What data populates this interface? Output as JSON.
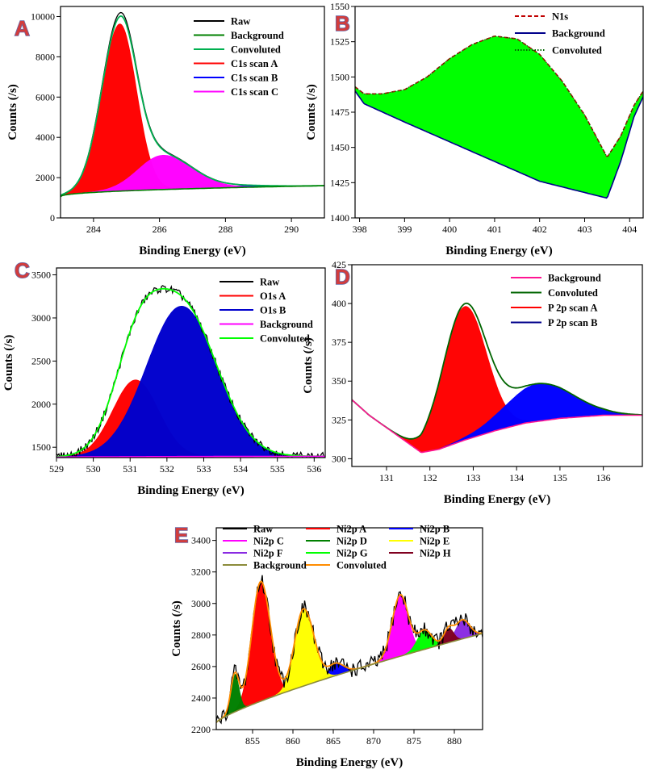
{
  "chart_data": [
    {
      "panel": "A",
      "type": "area",
      "xlabel": "Binding Energy (eV)",
      "ylabel": "Counts (/s)",
      "xlim": [
        283,
        291
      ],
      "ylim": [
        0,
        10500
      ],
      "xticks": [
        284,
        286,
        288,
        290
      ],
      "yticks": [
        0,
        2000,
        4000,
        6000,
        8000,
        10000
      ],
      "legend_position": "top-right",
      "background": {
        "x0": 283,
        "x1": 291,
        "y0": 1050,
        "y1": 1600,
        "k": 0.45
      },
      "peaks": [
        {
          "name": "C1s scan A",
          "color": "#ff0000",
          "center": 284.8,
          "height": 8300,
          "wl": 0.55,
          "wr": 0.5
        },
        {
          "name": "C1s scan B",
          "color": "#0000ff",
          "center": 288.5,
          "height": 80,
          "wl": 0.7,
          "wr": 0.9
        },
        {
          "name": "C1s scan C",
          "color": "#ff00ff",
          "center": 286.1,
          "height": 1700,
          "wl": 0.75,
          "wr": 0.9
        }
      ],
      "series": [
        {
          "name": "Raw",
          "color": "#000000",
          "style": "solid"
        },
        {
          "name": "Background",
          "color": "#008000",
          "style": "solid"
        },
        {
          "name": "Convoluted",
          "color": "#00b050",
          "style": "solid"
        },
        {
          "name": "C1s scan A",
          "color": "#ff0000",
          "style": "solid"
        },
        {
          "name": "C1s scan B",
          "color": "#0000ff",
          "style": "solid"
        },
        {
          "name": "C1s scan C",
          "color": "#ff00ff",
          "style": "solid"
        }
      ]
    },
    {
      "panel": "B",
      "type": "area",
      "xlabel": "Binding Energy (eV)",
      "ylabel": "Counts (/s)",
      "xlim": [
        397.9,
        404.3
      ],
      "ylim": [
        1400,
        1550
      ],
      "xticks": [
        398,
        399,
        400,
        401,
        402,
        403,
        404
      ],
      "yticks": [
        1400,
        1425,
        1450,
        1475,
        1500,
        1525,
        1550
      ],
      "legend_position": "top-right",
      "fill_color": "#00ff00",
      "upper_curve": [
        [
          397.9,
          1493
        ],
        [
          398.1,
          1488
        ],
        [
          398.5,
          1488
        ],
        [
          399,
          1491
        ],
        [
          399.5,
          1500
        ],
        [
          400,
          1513
        ],
        [
          400.5,
          1523
        ],
        [
          401,
          1529
        ],
        [
          401.5,
          1527
        ],
        [
          402,
          1516
        ],
        [
          402.5,
          1497
        ],
        [
          403,
          1473
        ],
        [
          403.5,
          1443
        ],
        [
          403.8,
          1458
        ],
        [
          404.1,
          1480
        ],
        [
          404.3,
          1490
        ]
      ],
      "lower_curve": [
        [
          397.9,
          1490
        ],
        [
          398.1,
          1481
        ],
        [
          399,
          1468
        ],
        [
          400,
          1454
        ],
        [
          401,
          1440
        ],
        [
          402,
          1426
        ],
        [
          403,
          1418
        ],
        [
          403.5,
          1414
        ],
        [
          403.8,
          1440
        ],
        [
          404.1,
          1472
        ],
        [
          404.3,
          1486
        ]
      ],
      "series": [
        {
          "name": "N1s",
          "color": "#c00000",
          "style": "dashed"
        },
        {
          "name": "Background",
          "color": "#00008b",
          "style": "solid"
        },
        {
          "name": "Convoluted",
          "color": "#006400",
          "style": "dotted"
        }
      ]
    },
    {
      "panel": "C",
      "type": "area",
      "xlabel": "Binding Energy (eV)",
      "ylabel": "Counts (/s)",
      "xlim": [
        529,
        536.3
      ],
      "ylim": [
        1380,
        3580
      ],
      "xticks": [
        529,
        530,
        531,
        532,
        533,
        534,
        535,
        536
      ],
      "yticks": [
        1500,
        2000,
        2500,
        3000,
        3500
      ],
      "legend_position": "top-right",
      "background": {
        "x0": 529,
        "x1": 536.3,
        "y0": 1385,
        "y1": 1395,
        "k": 0.5
      },
      "peaks": [
        {
          "name": "O1s A",
          "color": "#ff0000",
          "center": 531.15,
          "height": 890,
          "wl": 0.62,
          "wr": 0.62
        },
        {
          "name": "O1s B",
          "color": "#0000cd",
          "center": 532.4,
          "height": 1745,
          "wl": 0.95,
          "wr": 0.95
        }
      ],
      "noise": 45,
      "series": [
        {
          "name": "Raw",
          "color": "#000000",
          "style": "solid"
        },
        {
          "name": "O1s A",
          "color": "#ff0000",
          "style": "solid"
        },
        {
          "name": "O1s B",
          "color": "#0000cd",
          "style": "solid"
        },
        {
          "name": "Background",
          "color": "#ff00ff",
          "style": "solid"
        },
        {
          "name": "Convoluted",
          "color": "#00ff00",
          "style": "solid"
        }
      ]
    },
    {
      "panel": "D",
      "type": "area",
      "xlabel": "Binding Energy (eV)",
      "ylabel": "Counts (/s)",
      "xlim": [
        130.2,
        136.9
      ],
      "ylim": [
        295,
        425
      ],
      "xticks": [
        131,
        132,
        133,
        134,
        135,
        136
      ],
      "yticks": [
        300,
        325,
        350,
        375,
        400,
        425
      ],
      "legend_position": "top-right",
      "background_curve": [
        [
          130.2,
          338
        ],
        [
          130.6,
          328
        ],
        [
          131,
          320
        ],
        [
          131.4,
          312
        ],
        [
          131.8,
          304
        ],
        [
          132.2,
          306
        ],
        [
          132.8,
          312
        ],
        [
          133.5,
          318
        ],
        [
          134.2,
          323
        ],
        [
          135,
          326
        ],
        [
          136,
          328
        ],
        [
          136.9,
          328
        ]
      ],
      "peaks": [
        {
          "name": "P 2p scan A",
          "color": "#ff0000",
          "center": 132.8,
          "height": 86,
          "wl": 0.5,
          "wr": 0.5
        },
        {
          "name": "P 2p scan B",
          "color": "#0000ff",
          "center": 134.5,
          "height": 24,
          "wl": 0.75,
          "wr": 0.8
        }
      ],
      "series": [
        {
          "name": "Background",
          "color": "#ff1493",
          "style": "solid"
        },
        {
          "name": "Convoluted",
          "color": "#006400",
          "style": "solid"
        },
        {
          "name": "P 2p scan A",
          "color": "#ff0000",
          "style": "solid"
        },
        {
          "name": "P 2p scan B",
          "color": "#00008b",
          "style": "solid"
        }
      ]
    },
    {
      "panel": "E",
      "type": "area",
      "xlabel": "Binding Energy (eV)",
      "ylabel": "Counts (/s)",
      "xlim": [
        850.5,
        883.5
      ],
      "ylim": [
        2200,
        3480
      ],
      "xticks": [
        855,
        860,
        865,
        870,
        875,
        880
      ],
      "yticks": [
        2200,
        2400,
        2600,
        2800,
        3000,
        3200,
        3400
      ],
      "legend_position": "top",
      "background": {
        "x0": 850.5,
        "x1": 883.5,
        "y0": 2245,
        "y1": 2810,
        "k": 0.8
      },
      "peaks": [
        {
          "name": "Ni2p  A",
          "color": "#ff0000",
          "center": 856.0,
          "height": 760,
          "wl": 1.1,
          "wr": 1.2
        },
        {
          "name": "Ni2p  B",
          "color": "#0000ff",
          "center": 865.3,
          "height": 75,
          "wl": 0.9,
          "wr": 1.0
        },
        {
          "name": "Ni2p  C",
          "color": "#ff00ff",
          "center": 873.3,
          "height": 390,
          "wl": 1.0,
          "wr": 1.0
        },
        {
          "name": "Ni2p  D",
          "color": "#008000",
          "center": 852.8,
          "height": 240,
          "wl": 0.5,
          "wr": 0.5
        },
        {
          "name": "Ni2p  E",
          "color": "#ffff00",
          "center": 861.3,
          "height": 490,
          "wl": 1.1,
          "wr": 1.3
        },
        {
          "name": "Ni2p  F",
          "color": "#8a2be2",
          "center": 881.0,
          "height": 120,
          "wl": 0.8,
          "wr": 0.9
        },
        {
          "name": "Ni2p  G",
          "color": "#00ff00",
          "center": 876.3,
          "height": 120,
          "wl": 0.9,
          "wr": 0.9
        },
        {
          "name": "Ni2p  H",
          "color": "#800020",
          "center": 879.3,
          "height": 90,
          "wl": 0.6,
          "wr": 0.6
        }
      ],
      "noise": 55,
      "series": [
        {
          "name": "Raw",
          "color": "#000000",
          "style": "solid"
        },
        {
          "name": "Ni2p  A",
          "color": "#ff0000",
          "style": "solid"
        },
        {
          "name": "Ni2p  B",
          "color": "#0000ff",
          "style": "solid"
        },
        {
          "name": "Ni2p  C",
          "color": "#ff00ff",
          "style": "solid"
        },
        {
          "name": "Ni2p  D",
          "color": "#008000",
          "style": "solid"
        },
        {
          "name": "Ni2p  E",
          "color": "#ffff00",
          "style": "solid"
        },
        {
          "name": "Ni2p  F",
          "color": "#8a2be2",
          "style": "solid"
        },
        {
          "name": "Ni2p  G",
          "color": "#00ff00",
          "style": "solid"
        },
        {
          "name": "Ni2p  H",
          "color": "#800020",
          "style": "solid"
        },
        {
          "name": "Background",
          "color": "#8b8b3a",
          "style": "solid"
        },
        {
          "name": "Convoluted",
          "color": "#ff8c00",
          "style": "solid"
        }
      ]
    }
  ]
}
